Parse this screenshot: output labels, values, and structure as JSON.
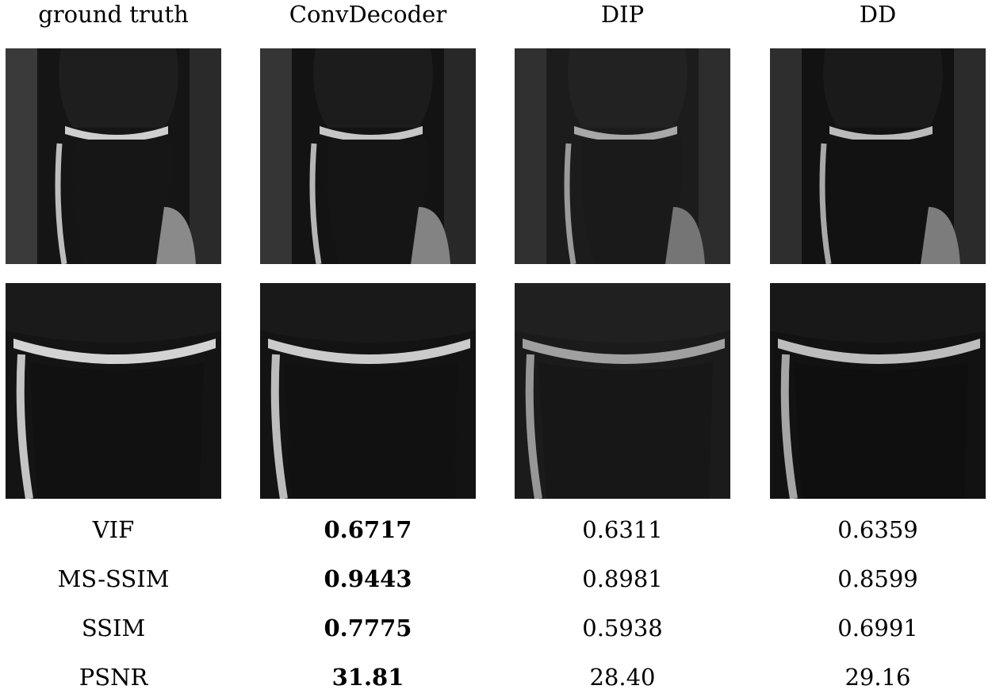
{
  "columns": [
    "ground truth",
    "ConvDecoder",
    "DIP",
    "DD"
  ],
  "metrics": [
    {
      "name": "VIF",
      "values": [
        "0.6717",
        "0.6311",
        "0.6359"
      ],
      "best": 0
    },
    {
      "name": "MS-SSIM",
      "values": [
        "0.9443",
        "0.8981",
        "0.8599"
      ],
      "best": 0
    },
    {
      "name": "SSIM",
      "values": [
        "0.7775",
        "0.5938",
        "0.6991"
      ],
      "best": 0
    },
    {
      "name": "PSNR",
      "values": [
        "31.81",
        "28.40",
        "29.16"
      ],
      "best": 0
    }
  ],
  "panels": {
    "row1": [
      "knee-mri-coronal-ground-truth",
      "knee-mri-coronal-convdecoder",
      "knee-mri-coronal-dip",
      "knee-mri-coronal-dd"
    ],
    "row2": [
      "knee-mri-zoom-ground-truth",
      "knee-mri-zoom-convdecoder",
      "knee-mri-zoom-dip",
      "knee-mri-zoom-dd"
    ]
  }
}
